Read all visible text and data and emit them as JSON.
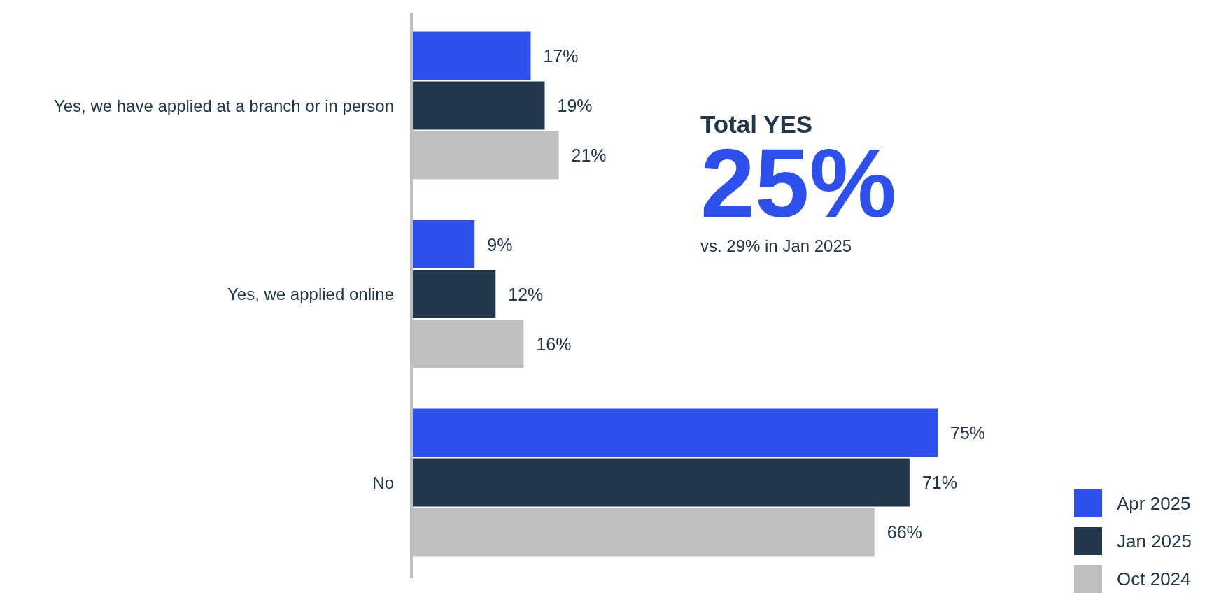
{
  "chart_data": {
    "type": "bar",
    "orientation": "horizontal",
    "categories": [
      "Yes, we have applied at a branch or in person",
      "Yes, we applied online",
      "No"
    ],
    "series": [
      {
        "name": "Apr 2025",
        "color": "#2d50ed",
        "values": [
          17,
          9,
          75
        ],
        "value_labels": [
          "17%",
          "9%",
          "75%"
        ]
      },
      {
        "name": "Jan 2025",
        "color": "#22374b",
        "values": [
          19,
          12,
          71
        ],
        "value_labels": [
          "19%",
          "12%",
          "71%"
        ]
      },
      {
        "name": "Oct 2024",
        "color": "#bfbfbf",
        "values": [
          21,
          16,
          66
        ],
        "value_labels": [
          "21%",
          "16%",
          "66%"
        ]
      }
    ],
    "legend": "bottom right",
    "annotations": [
      "Total YES",
      "25%",
      "vs. 29% in Jan 2025"
    ]
  }
}
